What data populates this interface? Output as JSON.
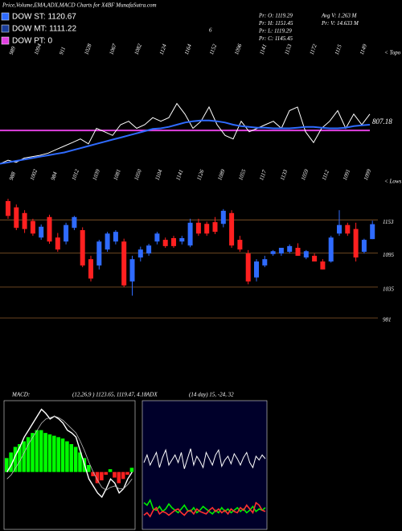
{
  "header": {
    "title": "Price,Volume,EMA,ADX,MACD Charts for X4BF MunafaSutra.com",
    "legend": [
      {
        "label": "DOW ST: 1120.67",
        "color": "#2f6bff"
      },
      {
        "label": "DOW MT: 1111.22",
        "color": "#1a3d99"
      },
      {
        "label": "DOW PT: 0",
        "color": "#e040e0"
      }
    ],
    "note": "6",
    "quote": [
      "Pr: O: 1119.29",
      "Pr: H: 1151.45",
      "Pr: L: 1119.29",
      "Pr: C: 1145.45"
    ],
    "volume": [
      "Avg V: 1.263 M",
      "Pr: V: 14.633 M"
    ]
  },
  "chart_data": [
    {
      "type": "line",
      "side_label": "< Topo",
      "peak_labels": [
        "989",
        "1094",
        "911",
        "1028",
        "1067",
        "1082",
        "1124",
        "1164",
        "1152",
        "1096",
        "1141",
        "1153",
        "1172",
        "1115",
        "1149"
      ],
      "level": 807.18,
      "level_label": "807.18",
      "level_color": "#e040e0",
      "ylim": [
        400,
        1300
      ],
      "series": [
        {
          "color": "#ffffff",
          "values": [
            559,
            585,
            569,
            601,
            612,
            622,
            638,
            665,
            691,
            717,
            744,
            707,
            823,
            797,
            770,
            850,
            876,
            823,
            850,
            903,
            876,
            903,
            1008,
            929,
            823,
            876,
            982,
            850,
            770,
            744,
            876,
            797,
            823,
            850,
            876,
            823,
            955,
            982,
            797,
            717,
            823,
            876,
            955,
            823,
            929,
            850,
            929
          ]
        },
        {
          "color": "#2f6bff",
          "values": [
            559,
            569,
            580,
            590,
            601,
            612,
            622,
            633,
            643,
            659,
            675,
            691,
            707,
            723,
            739,
            754,
            770,
            786,
            802,
            818,
            823,
            834,
            850,
            866,
            876,
            881,
            881,
            876,
            866,
            850,
            839,
            834,
            828,
            828,
            823,
            823,
            823,
            828,
            834,
            834,
            828,
            823,
            823,
            828,
            839,
            845,
            850
          ]
        }
      ]
    },
    {
      "type": "candlestick",
      "side_label": "< Lows",
      "peak_labels": [
        "988",
        "1002",
        "984",
        "1012",
        "1039",
        "1081",
        "1050",
        "1104",
        "1141",
        "1126",
        "1089",
        "1055",
        "1117",
        "1133",
        "1059",
        "1112",
        "1091",
        "1099"
      ],
      "up_color": "#2f6bff",
      "down_color": "#ff2020",
      "grid_color": "#8b5a2b",
      "ylim": [
        960,
        1200
      ],
      "yticks": [
        1153,
        1095,
        1035,
        981
      ],
      "open": [
        1186,
        1175,
        1165,
        1151,
        1122,
        1158,
        1122,
        1115,
        1139,
        1135,
        1084,
        1073,
        1101,
        1115,
        1115,
        1045,
        1087,
        1094,
        1115,
        1118,
        1121,
        1115,
        1108,
        1148,
        1146,
        1149,
        1146,
        1165,
        1118,
        1094,
        1052,
        1073,
        1093,
        1094,
        1097,
        1104,
        1087,
        1090,
        1080,
        1080,
        1129,
        1144,
        1137,
        1097,
        1119.29
      ],
      "high": [
        1190,
        1180,
        1170,
        1155,
        1145,
        1162,
        1130,
        1148,
        1160,
        1140,
        1090,
        1118,
        1132,
        1135,
        1120,
        1090,
        1106,
        1111,
        1132,
        1122,
        1125,
        1125,
        1155,
        1155,
        1150,
        1158,
        1172,
        1170,
        1125,
        1100,
        1084,
        1090,
        1100,
        1104,
        1110,
        1112,
        1100,
        1094,
        1084,
        1125,
        1170,
        1148,
        1148,
        1120,
        1151.45
      ],
      "low": [
        1155,
        1135,
        1130,
        1125,
        1118,
        1111,
        1097,
        1110,
        1135,
        1070,
        1045,
        1066,
        1097,
        1110,
        1035,
        1020,
        1080,
        1090,
        1110,
        1104,
        1104,
        1110,
        1105,
        1125,
        1125,
        1128,
        1140,
        1104,
        1097,
        1040,
        1045,
        1070,
        1090,
        1090,
        1094,
        1090,
        1084,
        1080,
        1066,
        1078,
        1125,
        1125,
        1080,
        1094,
        1119.29
      ],
      "close": [
        1160,
        1139,
        1137,
        1129,
        1141,
        1115,
        1101,
        1144,
        1158,
        1073,
        1050,
        1115,
        1129,
        1132,
        1038,
        1084,
        1101,
        1108,
        1129,
        1107,
        1107,
        1121,
        1148,
        1129,
        1129,
        1132,
        1169,
        1108,
        1101,
        1045,
        1080,
        1084,
        1098,
        1104,
        1107,
        1090,
        1098,
        1080,
        1066,
        1122,
        1144,
        1129,
        1087,
        1118,
        1145.45
      ]
    },
    {
      "type": "macd",
      "title": "MACD:",
      "params": "(12,26,9 ) 1123.65, 1119.47, 4.18",
      "ylim": [
        -40,
        50
      ],
      "histogram": [
        10,
        14,
        18,
        20,
        22,
        25,
        28,
        30,
        30,
        28,
        27,
        26,
        25,
        24,
        22,
        20,
        18,
        14,
        10,
        5,
        -3,
        -8,
        -6,
        -2,
        2,
        -4,
        -8,
        -5,
        -2,
        3
      ],
      "macd": [
        0,
        5,
        12,
        18,
        25,
        30,
        35,
        40,
        45,
        42,
        38,
        40,
        38,
        35,
        30,
        28,
        25,
        15,
        5,
        -5,
        -10,
        -15,
        -18,
        -12,
        -5,
        -8,
        -15,
        -12,
        -5,
        0
      ],
      "signal": [
        -5,
        -2,
        3,
        8,
        14,
        20,
        25,
        30,
        35,
        38,
        39,
        40,
        39,
        37,
        34,
        31,
        28,
        22,
        15,
        7,
        0,
        -6,
        -11,
        -13,
        -11,
        -10,
        -12,
        -12,
        -9,
        -5
      ]
    },
    {
      "type": "adx",
      "title": "ADX",
      "params": "(14 day) 15, -24, 32",
      "ylim": [
        0,
        100
      ],
      "series": [
        {
          "color": "#ffffff",
          "values": [
            52,
            58,
            50,
            55,
            60,
            48,
            56,
            62,
            50,
            54,
            58,
            52,
            60,
            47,
            55,
            63,
            50,
            57,
            53,
            48,
            60,
            55,
            50,
            58,
            62,
            49,
            54,
            57,
            51,
            59,
            55,
            50,
            56,
            60,
            52,
            48,
            57,
            54,
            58,
            55
          ]
        },
        {
          "color": "#00ee00",
          "values": [
            20,
            18,
            22,
            15,
            14,
            17,
            13,
            15,
            19,
            16,
            14,
            12,
            15,
            18,
            14,
            13,
            16,
            12,
            14,
            17,
            15,
            13,
            11,
            14,
            12,
            16,
            13,
            15,
            12,
            14,
            16,
            13,
            15,
            12,
            14,
            17,
            13,
            15,
            14,
            16
          ]
        },
        {
          "color": "#ff3030",
          "values": [
            10,
            12,
            9,
            14,
            16,
            11,
            13,
            12,
            10,
            12,
            14,
            15,
            12,
            10,
            13,
            14,
            11,
            15,
            13,
            12,
            11,
            14,
            16,
            13,
            15,
            12,
            14,
            11,
            15,
            13,
            12,
            16,
            14,
            18,
            15,
            12,
            20,
            18,
            14,
            13
          ]
        }
      ]
    }
  ]
}
